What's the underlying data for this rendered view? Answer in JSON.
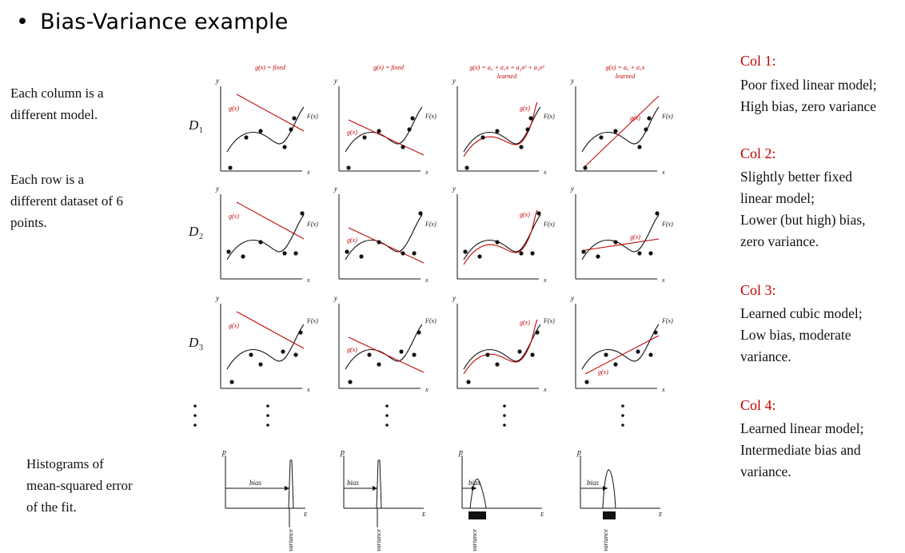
{
  "title": "Bias-Variance example",
  "left_notes": {
    "columns": [
      "Each column is a",
      "different model."
    ],
    "rows": [
      "Each row is a",
      "different dataset of 6",
      "points."
    ],
    "hist": [
      "Histograms of",
      "mean-squared error",
      "of the fit."
    ]
  },
  "model_headers": [
    [
      "g(x) = fixed"
    ],
    [
      "g(x) = fixed"
    ],
    [
      "g(x) = a₀ + a₁x + a₂x² + a₃x³",
      "learned"
    ],
    [
      "g(x) = a₀ + a₁x",
      "learned"
    ]
  ],
  "row_labels": [
    {
      "main": "D",
      "sub": "1"
    },
    {
      "main": "D",
      "sub": "2"
    },
    {
      "main": "D",
      "sub": "3"
    }
  ],
  "axis": {
    "y": "y",
    "x": "x",
    "p": "p",
    "e": "E"
  },
  "curve_labels": {
    "g": "g(x)",
    "f": "F(x)"
  },
  "hist_labels": {
    "bias": "bias",
    "variance": "variance"
  },
  "right_notes": [
    {
      "head": "Col 1:",
      "lines": [
        "Poor fixed linear model;",
        "High bias, zero variance"
      ]
    },
    {
      "head": "Col 2:",
      "lines": [
        "Slightly better fixed",
        "linear model;",
        "Lower (but high) bias,",
        "zero  variance."
      ]
    },
    {
      "head": "Col 3:",
      "lines": [
        "Learned cubic model;",
        "Low bias, moderate",
        "variance."
      ]
    },
    {
      "head": "Col 4:",
      "lines": [
        "Learned linear model;",
        "Intermediate bias and",
        "variance."
      ]
    }
  ],
  "colors": {
    "model": "#c00000",
    "text": "#111111"
  }
}
